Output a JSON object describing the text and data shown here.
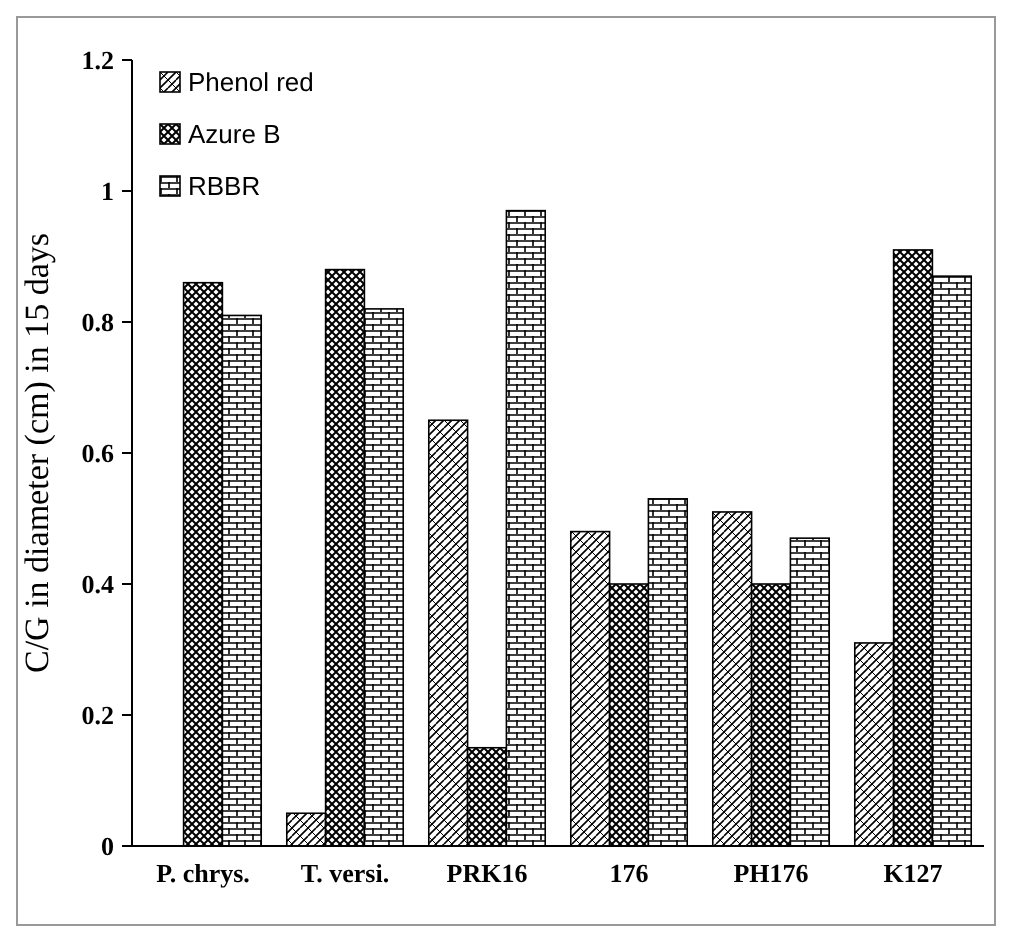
{
  "chart_data": {
    "type": "bar",
    "ylabel": "C/G in diameter (cm) in 15 days",
    "categories": [
      "P. chrys.",
      "T. versi.",
      "PRK16",
      "176",
      "PH176",
      "K127"
    ],
    "series": [
      {
        "name": "Phenol red",
        "color": "#000000",
        "values": [
          0,
          0.05,
          0.65,
          0.48,
          0.51,
          0.31
        ]
      },
      {
        "name": "Azure B",
        "color": "#000000",
        "values": [
          0.86,
          0.88,
          0.15,
          0.4,
          0.4,
          0.91
        ]
      },
      {
        "name": "RBBR",
        "color": "#000000",
        "values": [
          0.81,
          0.82,
          0.97,
          0.53,
          0.47,
          0.87
        ]
      }
    ],
    "ylim": [
      0,
      1.2
    ],
    "yticks": [
      0,
      0.2,
      0.4,
      0.6,
      0.8,
      1,
      1.2
    ],
    "grid": false,
    "legend": "top left"
  }
}
